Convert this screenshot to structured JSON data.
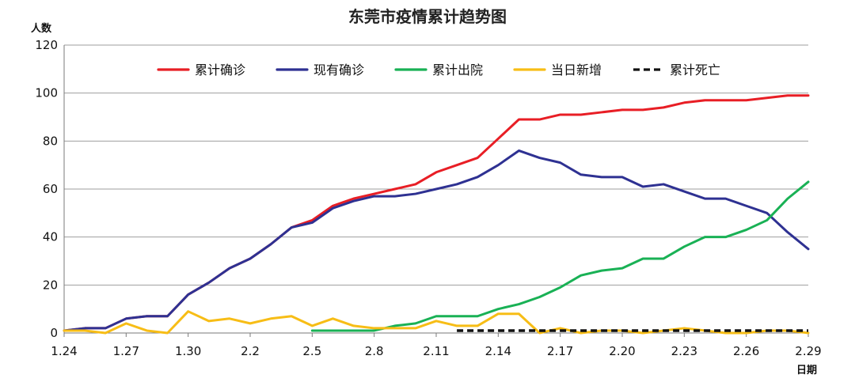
{
  "chart_data": {
    "type": "line",
    "title": "东莞市疫情累计趋势图",
    "xlabel": "日期",
    "ylabel": "人数",
    "ylim": [
      0,
      120
    ],
    "yticks": [
      0,
      20,
      40,
      60,
      80,
      100,
      120
    ],
    "grid": true,
    "legend_position": "top",
    "categories": [
      "1.24",
      "1.25",
      "1.26",
      "1.27",
      "1.28",
      "1.29",
      "1.30",
      "1.31",
      "2.1",
      "2.2",
      "2.3",
      "2.4",
      "2.5",
      "2.6",
      "2.7",
      "2.8",
      "2.9",
      "2.10",
      "2.11",
      "2.12",
      "2.13",
      "2.14",
      "2.15",
      "2.16",
      "2.17",
      "2.18",
      "2.19",
      "2.20",
      "2.21",
      "2.22",
      "2.23",
      "2.24",
      "2.25",
      "2.26",
      "2.27",
      "2.28",
      "2.29"
    ],
    "tick_labels": [
      "1.24",
      "1.27",
      "1.30",
      "2.2",
      "2.5",
      "2.8",
      "2.11",
      "2.14",
      "2.17",
      "2.20",
      "2.23",
      "2.26",
      "2.29"
    ],
    "series": [
      {
        "name": "累计确诊",
        "color": "#e81e25",
        "dash": "solid",
        "values": [
          1,
          2,
          2,
          6,
          7,
          7,
          16,
          21,
          27,
          31,
          37,
          44,
          47,
          53,
          56,
          58,
          60,
          62,
          67,
          70,
          73,
          81,
          89,
          89,
          91,
          91,
          92,
          93,
          93,
          94,
          96,
          97,
          97,
          97,
          98,
          99,
          99
        ]
      },
      {
        "name": "现有确诊",
        "color": "#2e3192",
        "dash": "solid",
        "values": [
          1,
          2,
          2,
          6,
          7,
          7,
          16,
          21,
          27,
          31,
          37,
          44,
          46,
          52,
          55,
          57,
          57,
          58,
          60,
          62,
          65,
          70,
          76,
          73,
          71,
          66,
          65,
          65,
          61,
          62,
          59,
          56,
          56,
          53,
          50,
          42,
          35
        ]
      },
      {
        "name": "累计出院",
        "color": "#19b155",
        "dash": "solid",
        "values": [
          null,
          null,
          null,
          null,
          null,
          null,
          null,
          null,
          null,
          null,
          null,
          null,
          1,
          1,
          1,
          1,
          3,
          4,
          7,
          7,
          7,
          10,
          12,
          15,
          19,
          24,
          26,
          27,
          31,
          31,
          36,
          40,
          40,
          43,
          47,
          56,
          63
        ]
      },
      {
        "name": "当日新增",
        "color": "#f7bd16",
        "dash": "solid",
        "values": [
          1,
          1,
          0,
          4,
          1,
          0,
          9,
          5,
          6,
          4,
          6,
          7,
          3,
          6,
          3,
          2,
          2,
          2,
          5,
          3,
          3,
          8,
          8,
          0,
          2,
          0,
          1,
          1,
          0,
          1,
          2,
          1,
          0,
          0,
          1,
          1,
          0
        ]
      },
      {
        "name": "累计死亡",
        "color": "#111111",
        "dash": "dashed",
        "values": [
          null,
          null,
          null,
          null,
          null,
          null,
          null,
          null,
          null,
          null,
          null,
          null,
          null,
          null,
          null,
          null,
          null,
          null,
          null,
          1,
          1,
          1,
          1,
          1,
          1,
          1,
          1,
          1,
          1,
          1,
          1,
          1,
          1,
          1,
          1,
          1,
          1
        ]
      }
    ]
  }
}
